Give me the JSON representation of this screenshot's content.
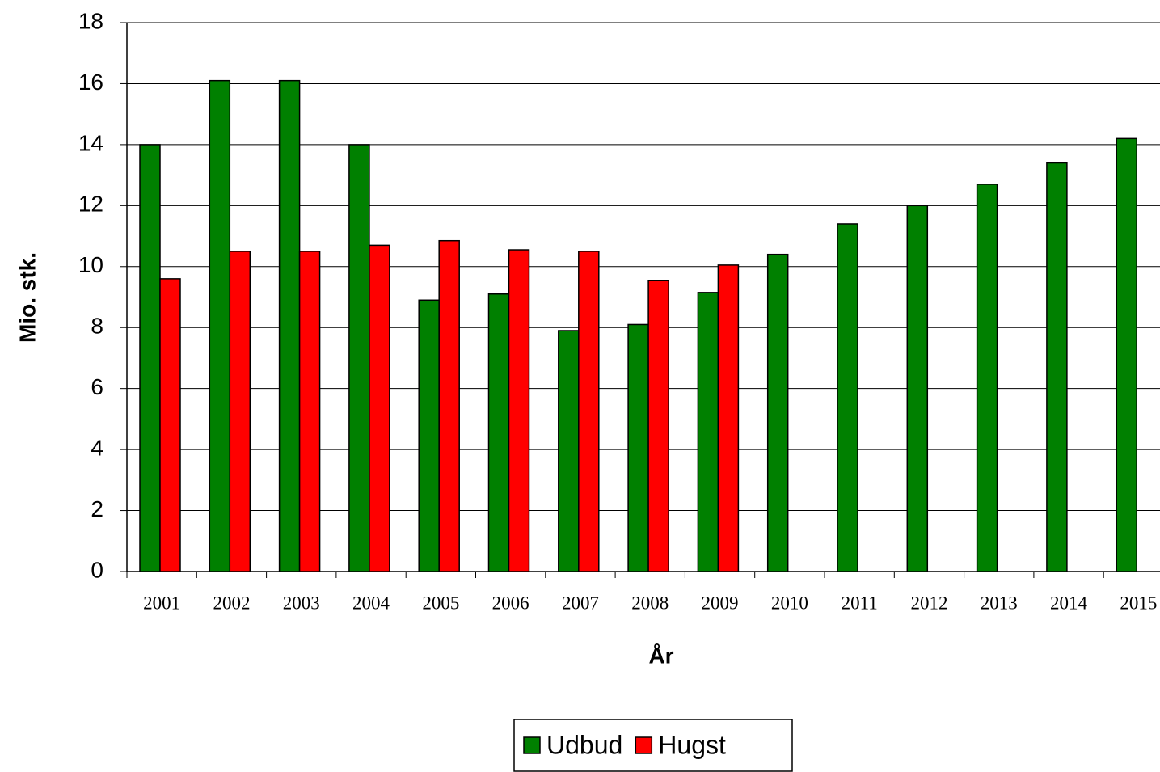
{
  "chart_data": {
    "type": "bar",
    "y_label": "Mio. stk.",
    "x_label": "År",
    "categories": [
      "2001",
      "2002",
      "2003",
      "2004",
      "2005",
      "2006",
      "2007",
      "2008",
      "2009",
      "2010",
      "2011",
      "2012",
      "2013",
      "2014",
      "2015"
    ],
    "series": [
      {
        "name": "Udbud",
        "color": "#008000",
        "values": [
          14.0,
          16.1,
          16.1,
          14.0,
          8.9,
          9.1,
          7.9,
          8.1,
          9.15,
          10.4,
          11.4,
          12.0,
          12.7,
          13.4,
          14.2
        ]
      },
      {
        "name": "Hugst",
        "color": "#ff0000",
        "values": [
          9.6,
          10.5,
          10.5,
          10.7,
          10.85,
          10.55,
          10.5,
          9.55,
          10.05,
          null,
          null,
          null,
          null,
          null,
          null
        ]
      }
    ],
    "ylim": [
      0,
      18
    ],
    "yticks": [
      0,
      2,
      4,
      6,
      8,
      10,
      12,
      14,
      16,
      18
    ],
    "grid": true,
    "legend": "bottom"
  }
}
